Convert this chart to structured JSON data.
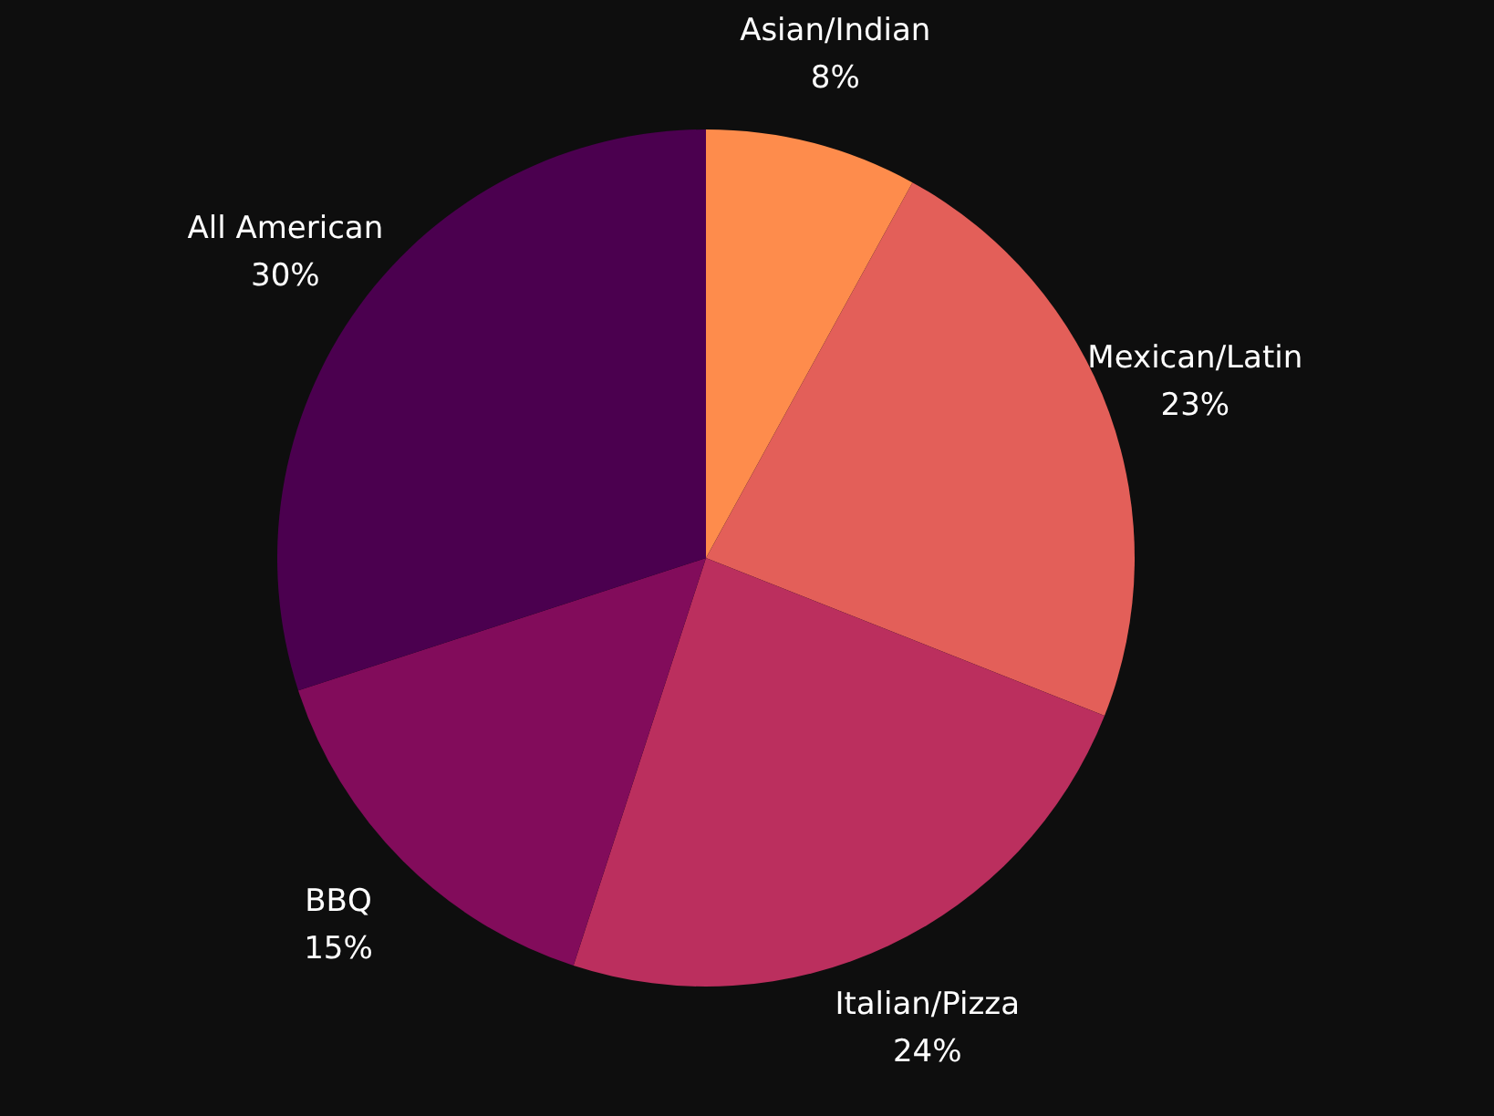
{
  "chart_data": {
    "type": "pie",
    "categories": [
      "Asian/Indian",
      "Mexican/Latin",
      "Italian/Pizza",
      "BBQ",
      "All American"
    ],
    "values": [
      8,
      23,
      24,
      15,
      30
    ],
    "value_labels": [
      "8%",
      "23%",
      "24%",
      "15%",
      "30%"
    ],
    "colors": [
      "#fe8c4c",
      "#e35f59",
      "#bb2f5e",
      "#820c5b",
      "#4b004f"
    ]
  }
}
